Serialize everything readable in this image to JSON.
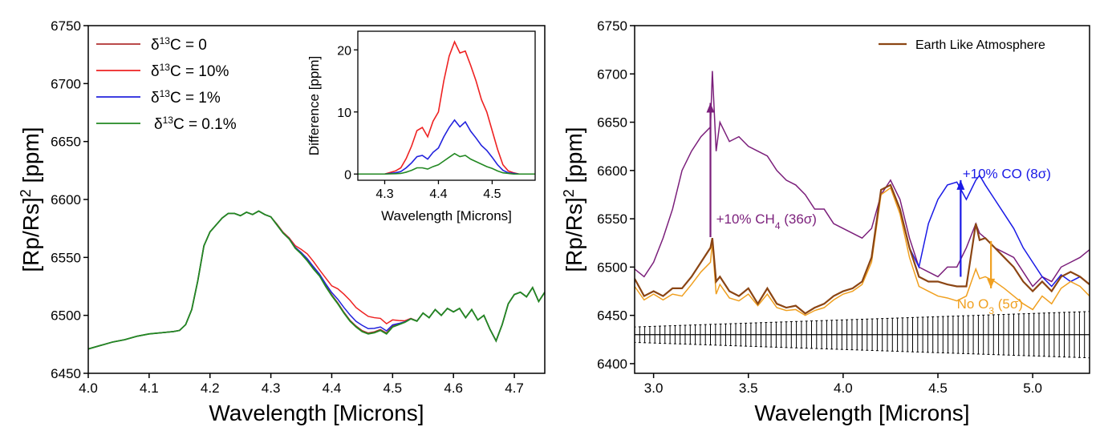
{
  "chart_data": [
    {
      "type": "line",
      "panel": "left",
      "xlabel": "Wavelength [Microns]",
      "ylabel": "[Rp/Rs]",
      "ylabel_superscript": "2",
      "ylabel_unit": "[ppm]",
      "xlim": [
        4.0,
        4.75
      ],
      "ylim": [
        6450,
        6750
      ],
      "xticks": [
        "4.0",
        "4.1",
        "4.2",
        "4.3",
        "4.4",
        "4.5",
        "4.6",
        "4.7"
      ],
      "yticks": [
        "6450",
        "6500",
        "6550",
        "6600",
        "6650",
        "6700",
        "6750"
      ],
      "legend": {
        "placement": "top-left",
        "prefix": "δ",
        "superscript": "13",
        "entries": [
          {
            "name": "C = 0",
            "color": "#b03030"
          },
          {
            "name": "C = 10%",
            "color": "#ee2222"
          },
          {
            "name": "C = 1%",
            "color": "#2222dd"
          },
          {
            "name": "C = 0.1%",
            "color": "#228822"
          }
        ]
      },
      "base_series": {
        "name": "δ13C = 0.1%",
        "color": "#228822",
        "x": [
          4.0,
          4.02,
          4.04,
          4.06,
          4.08,
          4.1,
          4.12,
          4.14,
          4.15,
          4.16,
          4.17,
          4.18,
          4.19,
          4.2,
          4.21,
          4.22,
          4.23,
          4.24,
          4.25,
          4.26,
          4.27,
          4.28,
          4.29,
          4.3,
          4.31,
          4.32,
          4.33,
          4.34,
          4.35,
          4.36,
          4.37,
          4.38,
          4.39,
          4.4,
          4.41,
          4.42,
          4.43,
          4.44,
          4.45,
          4.46,
          4.47,
          4.48,
          4.49,
          4.5,
          4.51,
          4.52,
          4.53,
          4.54,
          4.55,
          4.56,
          4.57,
          4.58,
          4.59,
          4.6,
          4.61,
          4.62,
          4.63,
          4.64,
          4.65,
          4.66,
          4.67,
          4.68,
          4.69,
          4.7,
          4.71,
          4.72,
          4.73,
          4.74,
          4.75
        ],
        "y": [
          6471,
          6474,
          6477,
          6479,
          6482,
          6484,
          6485,
          6486,
          6487,
          6492,
          6505,
          6530,
          6560,
          6572,
          6578,
          6584,
          6588,
          6588,
          6586,
          6589,
          6587,
          6590,
          6587,
          6585,
          6578,
          6571,
          6566,
          6558,
          6553,
          6547,
          6540,
          6534,
          6525,
          6517,
          6510,
          6502,
          6495,
          6490,
          6486,
          6484,
          6485,
          6487,
          6484,
          6490,
          6492,
          6494,
          6497,
          6495,
          6502,
          6498,
          6505,
          6500,
          6506,
          6503,
          6506,
          6498,
          6505,
          6496,
          6500,
          6488,
          6478,
          6492,
          6510,
          6518,
          6520,
          6516,
          6524,
          6512,
          6520
        ]
      },
      "inset": {
        "xlabel": "Wavelength [Microns]",
        "ylabel": "Difference [ppm]",
        "xlim": [
          4.25,
          4.58
        ],
        "ylim": [
          -1,
          23
        ],
        "xticks": [
          "4.3",
          "4.4",
          "4.5"
        ],
        "yticks": [
          "0",
          "10",
          "20"
        ],
        "x": [
          4.25,
          4.3,
          4.32,
          4.33,
          4.34,
          4.35,
          4.36,
          4.37,
          4.38,
          4.39,
          4.4,
          4.41,
          4.42,
          4.43,
          4.44,
          4.45,
          4.46,
          4.47,
          4.48,
          4.49,
          4.5,
          4.51,
          4.52,
          4.53,
          4.54,
          4.55,
          4.58
        ],
        "series": [
          {
            "name": "δ13C = 10%",
            "color": "#ee2222",
            "values": [
              0,
              0,
              0.5,
              1,
              2.5,
              4.5,
              7,
              7.5,
              6,
              8.5,
              10,
              15,
              19,
              21.3,
              19.5,
              19.8,
              17.5,
              15,
              12,
              10,
              7,
              4,
              1.5,
              0.5,
              0.2,
              0,
              0
            ]
          },
          {
            "name": "δ13C = 1%",
            "color": "#2222dd",
            "values": [
              0,
              0,
              0.2,
              0.4,
              1,
              1.8,
              2.8,
              3,
              2.4,
              3.5,
              4.2,
              6,
              7.5,
              8.7,
              7.6,
              8.4,
              6.9,
              5.8,
              4.6,
              3.8,
              2.7,
              1.5,
              0.6,
              0.2,
              0.1,
              0,
              0
            ]
          },
          {
            "name": "δ13C = 0.1%",
            "color": "#228822",
            "values": [
              0,
              0,
              0.05,
              0.1,
              0.3,
              0.6,
              1,
              1,
              0.8,
              1.2,
              1.5,
              2.1,
              2.7,
              3.3,
              2.8,
              3,
              2.4,
              2,
              1.6,
              1.2,
              0.9,
              0.5,
              0.2,
              0.1,
              0,
              0,
              0
            ]
          }
        ]
      },
      "diff_scale": {
        "ee2222": 1.0,
        "2222dd": 1.0,
        "b03030": 0.0,
        "228822": 0.0
      }
    },
    {
      "type": "line",
      "panel": "right",
      "xlabel": "Wavelength [Microns]",
      "ylabel": "[Rp/Rs]",
      "ylabel_superscript": "2",
      "ylabel_unit": "[ppm]",
      "xlim": [
        2.9,
        5.3
      ],
      "ylim": [
        6390,
        6750
      ],
      "xticks": [
        "3.0",
        "3.5",
        "4.0",
        "4.5",
        "5.0"
      ],
      "yticks": [
        "6400",
        "6450",
        "6500",
        "6550",
        "6600",
        "6650",
        "6700",
        "6750"
      ],
      "legend": {
        "placement": "top-right",
        "entries": [
          {
            "name": "Earth Like Atmosphere",
            "color": "#8b4513"
          }
        ]
      },
      "x": [
        2.9,
        2.95,
        3.0,
        3.05,
        3.1,
        3.15,
        3.2,
        3.25,
        3.3,
        3.31,
        3.33,
        3.35,
        3.4,
        3.45,
        3.5,
        3.55,
        3.6,
        3.65,
        3.7,
        3.75,
        3.8,
        3.85,
        3.9,
        3.95,
        4.0,
        4.05,
        4.1,
        4.15,
        4.2,
        4.25,
        4.3,
        4.35,
        4.4,
        4.45,
        4.5,
        4.55,
        4.6,
        4.65,
        4.7,
        4.72,
        4.75,
        4.8,
        4.85,
        4.9,
        4.95,
        5.0,
        5.05,
        5.1,
        5.15,
        5.2,
        5.25,
        5.3
      ],
      "series": [
        {
          "name": "+10% CH4",
          "color": "#7b1f7b",
          "values": [
            6498,
            6490,
            6505,
            6530,
            6560,
            6600,
            6620,
            6635,
            6645,
            6703,
            6620,
            6650,
            6630,
            6635,
            6625,
            6620,
            6615,
            6600,
            6590,
            6585,
            6575,
            6560,
            6560,
            6545,
            6540,
            6535,
            6530,
            6540,
            6575,
            6590,
            6570,
            6530,
            6500,
            6495,
            6490,
            6500,
            6500,
            6520,
            6545,
            6535,
            6530,
            6520,
            6515,
            6510,
            6495,
            6480,
            6490,
            6485,
            6500,
            6505,
            6510,
            6518
          ]
        },
        {
          "name": "+10% CO",
          "color": "#1a1ae6",
          "values": [
            6488,
            6470,
            6475,
            6470,
            6478,
            6478,
            6490,
            6505,
            6520,
            6530,
            6485,
            6490,
            6475,
            6470,
            6478,
            6462,
            6478,
            6462,
            6458,
            6460,
            6452,
            6458,
            6462,
            6470,
            6475,
            6478,
            6485,
            6510,
            6580,
            6585,
            6560,
            6520,
            6500,
            6545,
            6570,
            6585,
            6588,
            6570,
            6590,
            6595,
            6585,
            6570,
            6555,
            6540,
            6520,
            6505,
            6490,
            6480,
            6492,
            6485,
            6490,
            6482
          ]
        },
        {
          "name": "Earth Like Atmosphere",
          "color": "#8b4513",
          "values": [
            6488,
            6470,
            6475,
            6470,
            6478,
            6478,
            6490,
            6505,
            6520,
            6530,
            6485,
            6490,
            6475,
            6470,
            6478,
            6462,
            6478,
            6462,
            6458,
            6460,
            6452,
            6458,
            6462,
            6470,
            6475,
            6478,
            6485,
            6510,
            6580,
            6585,
            6560,
            6520,
            6490,
            6485,
            6485,
            6482,
            6480,
            6480,
            6545,
            6528,
            6530,
            6520,
            6510,
            6500,
            6485,
            6475,
            6485,
            6475,
            6490,
            6495,
            6490,
            6482
          ]
        },
        {
          "name": "No O3",
          "color": "#f0a020",
          "values": [
            6480,
            6466,
            6472,
            6466,
            6472,
            6470,
            6482,
            6495,
            6505,
            6525,
            6472,
            6482,
            6468,
            6465,
            6472,
            6460,
            6472,
            6458,
            6455,
            6456,
            6450,
            6455,
            6458,
            6466,
            6472,
            6475,
            6482,
            6505,
            6575,
            6582,
            6555,
            6510,
            6480,
            6475,
            6470,
            6468,
            6465,
            6470,
            6498,
            6488,
            6490,
            6485,
            6478,
            6470,
            6462,
            6456,
            6470,
            6462,
            6478,
            6485,
            6480,
            6470
          ]
        }
      ],
      "error_bar_band": {
        "center": 6430,
        "half_width_start": 8,
        "half_width_end": 24,
        "x_start": 2.9,
        "x_end": 5.3
      },
      "annotations": [
        {
          "id": "ch4",
          "text": "+10% CH",
          "subscript": "4",
          "suffix": " (36σ)",
          "color": "#7b1f7b",
          "x_data": 3.3,
          "y_from": 6531,
          "y_to": 6670,
          "label_x": 3.33,
          "label_y": 6550
        },
        {
          "id": "co",
          "text": "+10% CO (8σ)",
          "color": "#1a1ae6",
          "x_data": 4.62,
          "y_from": 6490,
          "y_to": 6590,
          "label_x": 4.63,
          "label_y": 6597
        },
        {
          "id": "o3",
          "text": "No O",
          "subscript": "3",
          "suffix": " (5σ)",
          "color": "#f0a020",
          "x_data": 4.78,
          "y_from": 6527,
          "y_to": 6478,
          "label_x": 4.6,
          "label_y": 6462
        }
      ]
    }
  ]
}
